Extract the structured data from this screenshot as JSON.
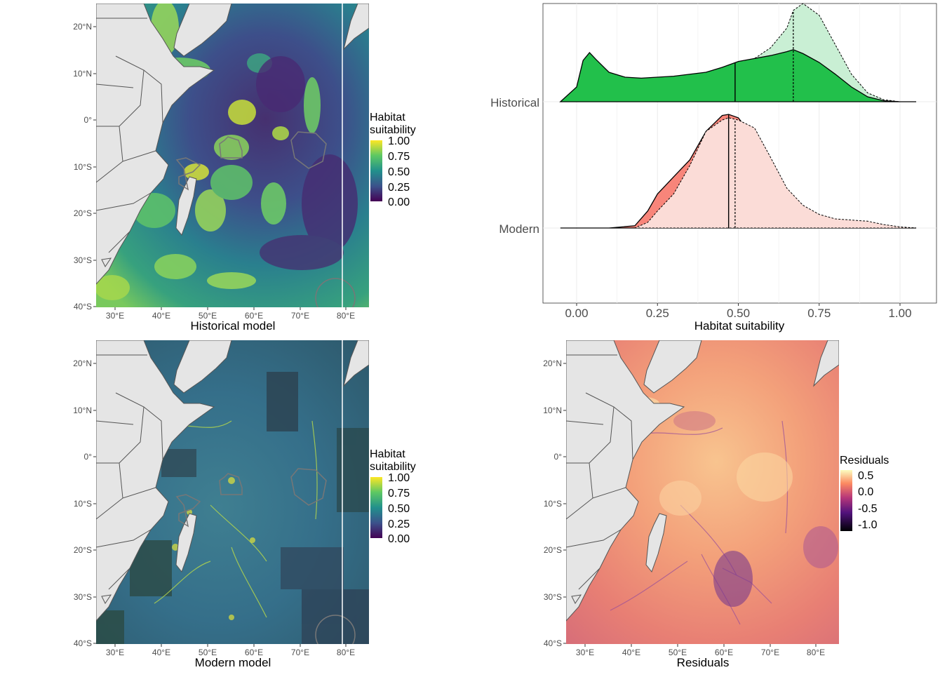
{
  "maps": {
    "historical": {
      "xlabel": "Historical model",
      "legend_title_line1": "Habitat",
      "legend_title_line2": "suitability",
      "legend_ticks": [
        "1.00",
        "0.75",
        "0.50",
        "0.25",
        "0.00"
      ],
      "palette": "viridis",
      "palette_colors": [
        "#440154",
        "#3b528b",
        "#21908c",
        "#5dc863",
        "#fde725"
      ]
    },
    "modern": {
      "xlabel": "Modern model",
      "legend_title_line1": "Habitat",
      "legend_title_line2": "suitability",
      "legend_ticks": [
        "1.00",
        "0.75",
        "0.50",
        "0.25",
        "0.00"
      ],
      "palette": "viridis",
      "palette_colors": [
        "#440154",
        "#3b528b",
        "#21908c",
        "#5dc863",
        "#fde725"
      ]
    },
    "residuals": {
      "xlabel": "Residuals",
      "legend_title": "Residuals",
      "legend_ticks": [
        "0.5",
        "0.0",
        "-0.5",
        "-1.0"
      ],
      "palette": "magma",
      "palette_colors": [
        "#000004",
        "#51127c",
        "#b73779",
        "#fc8961",
        "#fcfdbf"
      ]
    },
    "lat_ticks": [
      "20°N",
      "10°N",
      "0°",
      "10°S",
      "20°S",
      "30°S",
      "40°S"
    ],
    "lon_ticks": [
      "30°E",
      "40°E",
      "50°E",
      "60°E",
      "70°E",
      "80°E"
    ],
    "land_color": "#e5e5e5",
    "border_color": "#555555"
  },
  "chart_data": {
    "type": "ridgeline density",
    "xlabel": "Habitat suitability",
    "x_ticks": [
      "0.00",
      "0.25",
      "0.50",
      "0.75",
      "1.00"
    ],
    "xlim": [
      -0.05,
      1.05
    ],
    "y_categories": [
      "Historical",
      "Modern"
    ],
    "series": [
      {
        "category": "Historical",
        "color": "#22c04b",
        "light_color": "#c9efd4",
        "median": 0.49,
        "comparison_median": 0.67,
        "x": [
          -0.05,
          0.0,
          0.02,
          0.04,
          0.06,
          0.1,
          0.15,
          0.2,
          0.3,
          0.4,
          0.45,
          0.5,
          0.55,
          0.6,
          0.65,
          0.67,
          0.7,
          0.75,
          0.8,
          0.85,
          0.9,
          0.95,
          1.0,
          1.05
        ],
        "density": [
          0.0,
          0.15,
          0.42,
          0.5,
          0.43,
          0.3,
          0.25,
          0.24,
          0.26,
          0.3,
          0.35,
          0.41,
          0.44,
          0.47,
          0.51,
          0.53,
          0.49,
          0.4,
          0.28,
          0.15,
          0.05,
          0.01,
          0.0,
          0.0
        ],
        "comparison_density": [
          0.0,
          0.0,
          0.0,
          0.0,
          0.0,
          0.0,
          0.0,
          0.0,
          0.05,
          0.2,
          0.29,
          0.36,
          0.44,
          0.55,
          0.75,
          0.93,
          1.0,
          0.88,
          0.58,
          0.28,
          0.09,
          0.02,
          0.0,
          0.0
        ]
      },
      {
        "category": "Modern",
        "color": "#f8857a",
        "light_color": "#fbdcd7",
        "median": 0.47,
        "comparison_median": 0.49,
        "x": [
          -0.05,
          0.0,
          0.1,
          0.18,
          0.22,
          0.25,
          0.3,
          0.35,
          0.4,
          0.45,
          0.47,
          0.5,
          0.55,
          0.6,
          0.65,
          0.7,
          0.75,
          0.8,
          0.85,
          0.9,
          0.95,
          1.0,
          1.05
        ],
        "density": [
          0.0,
          0.0,
          0.0,
          0.02,
          0.15,
          0.3,
          0.45,
          0.6,
          0.85,
          0.99,
          1.0,
          0.97,
          0.78,
          0.5,
          0.28,
          0.15,
          0.08,
          0.05,
          0.03,
          0.02,
          0.01,
          0.0,
          0.0
        ],
        "comparison_density": [
          0.0,
          0.0,
          0.0,
          0.0,
          0.05,
          0.15,
          0.3,
          0.55,
          0.85,
          0.95,
          0.97,
          0.95,
          0.88,
          0.62,
          0.35,
          0.2,
          0.12,
          0.08,
          0.07,
          0.06,
          0.03,
          0.01,
          0.0
        ]
      }
    ]
  }
}
